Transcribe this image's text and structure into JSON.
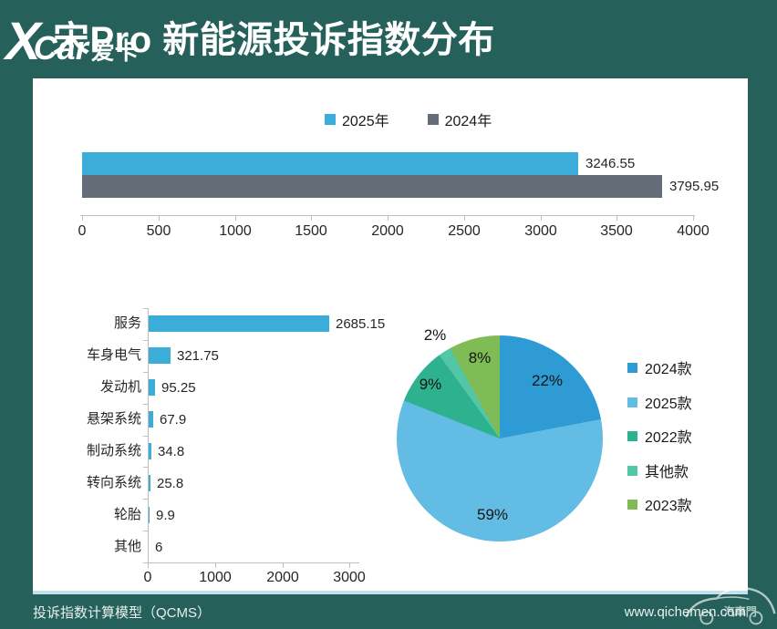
{
  "header": {
    "title": "宋Pro 新能源投诉指数分布",
    "logo": {
      "x": "X",
      "car": "Car",
      "cn": "爱卡"
    }
  },
  "chart_data": [
    {
      "type": "bar",
      "orientation": "horizontal",
      "legend_position": "top",
      "grid": false,
      "series": [
        {
          "name": "2025年",
          "value": 3246.55,
          "color": "#3CACD8"
        },
        {
          "name": "2024年",
          "value": 3795.95,
          "color": "#646C78"
        }
      ],
      "xlim": [
        0,
        4000
      ],
      "xticks": [
        0,
        500,
        1000,
        1500,
        2000,
        2500,
        3000,
        3500,
        4000
      ]
    },
    {
      "type": "bar",
      "orientation": "horizontal",
      "grid": false,
      "bar_color": "#3CACD8",
      "categories": [
        "服务",
        "车身电气",
        "发动机",
        "悬架系统",
        "制动系统",
        "转向系统",
        "轮胎",
        "其他"
      ],
      "values": [
        2685.15,
        321.75,
        95.25,
        67.9,
        34.8,
        25.8,
        9.9,
        6
      ],
      "xlim": [
        0,
        3000
      ],
      "xticks": [
        0,
        1000,
        2000,
        3000
      ]
    },
    {
      "type": "pie",
      "legend_position": "right",
      "slices": [
        {
          "label": "2024款",
          "value": 22,
          "pct_label": "22%",
          "color": "#2E9BD4"
        },
        {
          "label": "2025款",
          "value": 59,
          "pct_label": "59%",
          "color": "#62BCE4"
        },
        {
          "label": "2022款",
          "value": 9,
          "pct_label": "9%",
          "color": "#2DB18F"
        },
        {
          "label": "其他款",
          "value": 2,
          "pct_label": "2%",
          "color": "#52C6A5"
        },
        {
          "label": "2023款",
          "value": 8,
          "pct_label": "8%",
          "color": "#7FBC55"
        }
      ]
    }
  ],
  "footer": {
    "left": "投诉指数计算模型（QCMS）",
    "right": "www.qichemen.com",
    "watermark": "汽車門"
  },
  "colors": {
    "background": "#25615A",
    "panel": "#FFFFFF",
    "axis": "#BFBFBF",
    "text": "#262626"
  }
}
